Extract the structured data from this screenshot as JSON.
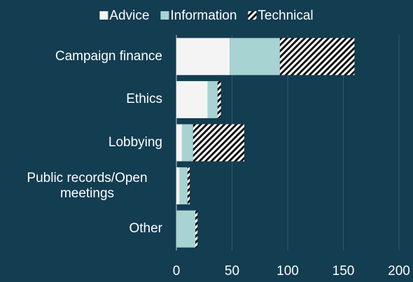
{
  "chart_data": {
    "type": "stacked-bar-horizontal",
    "categories": [
      "Campaign finance",
      "Ethics",
      "Lobbying",
      "Public records/Open meetings",
      "Other"
    ],
    "series": [
      {
        "name": "Advice",
        "color": "#f4f4f4",
        "values": [
          48,
          28,
          5,
          3,
          0
        ]
      },
      {
        "name": "Information",
        "color": "#a8d3d3",
        "values": [
          45,
          9,
          10,
          7,
          17
        ]
      },
      {
        "name": "Technical",
        "color": "#ffffff",
        "hatch": true,
        "values": [
          67,
          3,
          46,
          2,
          2
        ]
      }
    ],
    "xlim": [
      0,
      200
    ],
    "xticks": [
      0,
      50,
      100,
      150,
      200
    ],
    "grid": true,
    "legend": "top"
  }
}
